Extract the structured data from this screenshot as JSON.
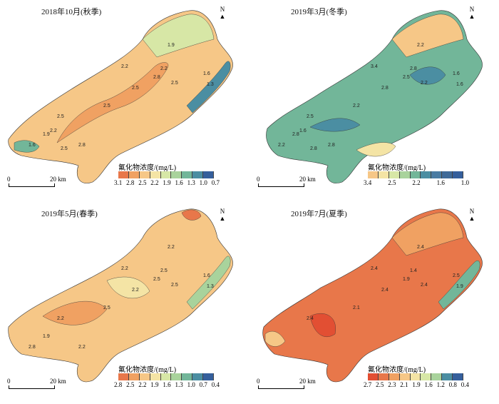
{
  "panels": [
    {
      "title": "2018年10月(秋季)",
      "legend_title": "氟化物浓度/(mg/L)",
      "legend_labels": [
        "3.1",
        "2.8",
        "2.5",
        "2.2",
        "1.9",
        "1.6",
        "1.3",
        "1.0",
        "0.7"
      ],
      "contour_labels": [
        "2.2",
        "2.5",
        "2.8",
        "2.2",
        "2.5",
        "1.9",
        "1.6",
        "1.3",
        "2.5",
        "2.5",
        "1.9",
        "1.6",
        "2.8",
        "2.5",
        "2.2"
      ],
      "colors": [
        "#e8774a",
        "#f0a162",
        "#f6c787",
        "#f4e4a5",
        "#d7e7a6",
        "#a9d39c",
        "#72b699",
        "#4b8ea2",
        "#355f9c"
      ]
    },
    {
      "title": "2019年3月(冬季)",
      "legend_title": "氟化物浓度/(mg/L)",
      "legend_labels": [
        "3.4",
        "2.5",
        "2.2",
        "1.6",
        "1.0"
      ],
      "contour_labels": [
        "3.4",
        "2.8",
        "2.5",
        "2.8",
        "2.2",
        "2.2",
        "1.6",
        "1.6",
        "2.2",
        "2.5",
        "2.8",
        "2.2",
        "2.8",
        "2.8",
        "1.6"
      ],
      "colors": [
        "#f6c787",
        "#f4e4a5",
        "#d7e7a6",
        "#a9d39c",
        "#72b699",
        "#4b8ea2",
        "#4a7ca3",
        "#3f6a98",
        "#355f9c"
      ]
    },
    {
      "title": "2019年5月(春季)",
      "legend_title": "氟化物浓度/(mg/L)",
      "legend_labels": [
        "2.8",
        "2.5",
        "2.2",
        "1.9",
        "1.6",
        "1.3",
        "1.0",
        "0.7",
        "0.4"
      ],
      "contour_labels": [
        "2.2",
        "2.2",
        "2.5",
        "2.5",
        "2.5",
        "2.2",
        "1.6",
        "1.3",
        "2.5",
        "2.2",
        "1.9",
        "2.8",
        "2.2"
      ],
      "colors": [
        "#e8774a",
        "#f0a162",
        "#f6c787",
        "#f4e4a5",
        "#d7e7a6",
        "#a9d39c",
        "#72b699",
        "#4b8ea2",
        "#355f9c"
      ]
    },
    {
      "title": "2019年7月(夏季)",
      "legend_title": "氟化物浓度/(mg/L)",
      "legend_labels": [
        "2.7",
        "2.5",
        "2.3",
        "2.1",
        "1.9",
        "1.6",
        "1.2",
        "0.8",
        "0.4"
      ],
      "contour_labels": [
        "2.4",
        "2.4",
        "1.9",
        "1.4",
        "2.4",
        "2.4",
        "2.5",
        "1.9",
        "2.1",
        "2.4"
      ],
      "colors": [
        "#e24f33",
        "#e8774a",
        "#f0a162",
        "#f6c787",
        "#f4e4a5",
        "#d7e7a6",
        "#a9d39c",
        "#4b8ea2",
        "#355f9c"
      ]
    }
  ],
  "north_label": "N",
  "scale": {
    "zero": "0",
    "distance": "20 km"
  }
}
